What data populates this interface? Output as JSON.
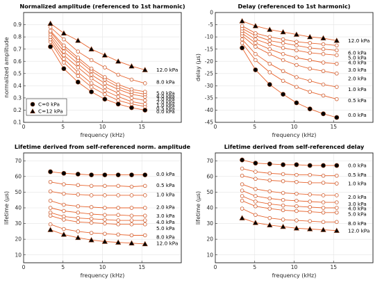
{
  "colors": {
    "line": "#e8632c",
    "marker_edge": "#c94e1c",
    "bold_fill": "#000000",
    "bold_edge": "#8a3a16"
  },
  "chart_data": [
    {
      "type": "line",
      "title": "Normalized amplitude (referenced to 1st harmonic)",
      "xlabel": "frequency (kHz)",
      "ylabel": "normalized amplitude",
      "xlim": [
        0,
        20
      ],
      "ylim": [
        0.1,
        1.0
      ],
      "xticks": [
        0,
        5,
        10,
        15
      ],
      "yticks": [
        0.1,
        0.2,
        0.3,
        0.4,
        0.5,
        0.6,
        0.7,
        0.8,
        0.9
      ],
      "grid": true,
      "x": [
        3.4,
        5.1,
        6.9,
        8.6,
        10.3,
        12.0,
        13.7,
        15.4
      ],
      "legend": {
        "placement": "bottom-left",
        "entries": [
          {
            "label": "C=0 kPa",
            "marker": "circle"
          },
          {
            "label": "C=12 kPa",
            "marker": "triangle"
          }
        ]
      },
      "series": [
        {
          "name": "0.0 kPa",
          "marker": "circle",
          "bold": true,
          "values": [
            0.72,
            0.54,
            0.43,
            0.35,
            0.29,
            0.25,
            0.22,
            0.2
          ]
        },
        {
          "name": "0.5 kPa",
          "marker": "open-circle",
          "bold": false,
          "values": [
            0.76,
            0.59,
            0.48,
            0.39,
            0.33,
            0.28,
            0.25,
            0.23
          ]
        },
        {
          "name": "1.0 kPa",
          "marker": "open-circle",
          "bold": false,
          "values": [
            0.78,
            0.62,
            0.51,
            0.42,
            0.36,
            0.31,
            0.27,
            0.25
          ]
        },
        {
          "name": "2.0 kPa",
          "marker": "open-circle",
          "bold": false,
          "values": [
            0.8,
            0.65,
            0.55,
            0.46,
            0.39,
            0.34,
            0.3,
            0.28
          ]
        },
        {
          "name": "3.0 kPa",
          "marker": "open-circle",
          "bold": false,
          "values": [
            0.82,
            0.68,
            0.58,
            0.49,
            0.42,
            0.37,
            0.33,
            0.31
          ]
        },
        {
          "name": "4.0 kPa",
          "marker": "open-circle",
          "bold": false,
          "values": [
            0.84,
            0.71,
            0.61,
            0.52,
            0.45,
            0.39,
            0.35,
            0.33
          ]
        },
        {
          "name": "5.0 kPa",
          "marker": "open-circle",
          "bold": false,
          "values": [
            0.85,
            0.73,
            0.63,
            0.54,
            0.47,
            0.41,
            0.37,
            0.35
          ]
        },
        {
          "name": "8.0 kPa",
          "marker": "open-circle",
          "bold": false,
          "values": [
            0.88,
            0.78,
            0.68,
            0.61,
            0.55,
            0.49,
            0.45,
            0.42
          ]
        },
        {
          "name": "12.0 kPa",
          "marker": "triangle",
          "bold": true,
          "values": [
            0.91,
            0.83,
            0.77,
            0.7,
            0.65,
            0.6,
            0.56,
            0.53
          ]
        }
      ],
      "labels": [
        {
          "text": "12.0 kPa",
          "y": 0.53
        },
        {
          "text": "8.0 kPa",
          "y": 0.43
        },
        {
          "text": "5.0 kPa",
          "y": 0.34
        },
        {
          "text": "4.0 kPa",
          "y": 0.315
        },
        {
          "text": "3.0 kPa",
          "y": 0.29
        },
        {
          "text": "2.0 kPa",
          "y": 0.265
        },
        {
          "text": "1.0 kPa",
          "y": 0.24
        },
        {
          "text": "0.5 kPa",
          "y": 0.215
        },
        {
          "text": "0.0 kPa",
          "y": 0.19
        }
      ]
    },
    {
      "type": "line",
      "title": "Delay (referenced to 1st harmonic)",
      "xlabel": "frequency (kHz)",
      "ylabel": "delay (μs)",
      "xlim": [
        0,
        20
      ],
      "ylim": [
        -45,
        0
      ],
      "xticks": [
        0,
        5,
        10,
        15
      ],
      "yticks": [
        0,
        -5,
        -10,
        -15,
        -20,
        -25,
        -30,
        -35,
        -40,
        -45
      ],
      "grid": true,
      "x": [
        3.4,
        5.1,
        6.9,
        8.6,
        10.3,
        12.0,
        13.7,
        15.4
      ],
      "series": [
        {
          "name": "0.0 kPa",
          "marker": "circle",
          "bold": true,
          "values": [
            -14.5,
            -23.5,
            -29.5,
            -33.5,
            -37.0,
            -39.5,
            -41.5,
            -43.0
          ]
        },
        {
          "name": "0.5 kPa",
          "marker": "open-circle",
          "bold": false,
          "values": [
            -12.5,
            -19.5,
            -24.5,
            -28.0,
            -30.5,
            -32.5,
            -34.0,
            -35.5
          ]
        },
        {
          "name": "1.0 kPa",
          "marker": "open-circle",
          "bold": false,
          "values": [
            -11.0,
            -17.0,
            -21.0,
            -24.0,
            -26.5,
            -28.0,
            -29.5,
            -30.5
          ]
        },
        {
          "name": "2.0 kPa",
          "marker": "open-circle",
          "bold": false,
          "values": [
            -9.5,
            -14.0,
            -17.0,
            -19.5,
            -21.5,
            -23.0,
            -24.0,
            -25.0
          ]
        },
        {
          "name": "3.0 kPa",
          "marker": "open-circle",
          "bold": false,
          "values": [
            -8.5,
            -12.5,
            -15.0,
            -17.0,
            -18.5,
            -19.5,
            -20.5,
            -21.0
          ]
        },
        {
          "name": "4.0 kPa",
          "marker": "open-circle",
          "bold": false,
          "values": [
            -7.5,
            -11.0,
            -13.0,
            -14.5,
            -15.5,
            -16.5,
            -17.0,
            -17.5
          ]
        },
        {
          "name": "5.0 kPa",
          "marker": "open-circle",
          "bold": false,
          "values": [
            -6.5,
            -9.5,
            -11.5,
            -12.5,
            -13.5,
            -14.5,
            -15.0,
            -15.5
          ]
        },
        {
          "name": "6.0 kPa",
          "marker": "open-circle",
          "bold": false,
          "values": [
            -5.5,
            -8.5,
            -10.0,
            -11.0,
            -12.0,
            -12.5,
            -13.0,
            -13.5
          ]
        },
        {
          "name": "12.0 kPa",
          "marker": "triangle",
          "bold": true,
          "values": [
            -3.5,
            -5.5,
            -7.0,
            -8.0,
            -9.0,
            -10.0,
            -10.5,
            -11.5
          ]
        }
      ],
      "labels": [
        {
          "text": "12.0 kPa",
          "y": -11.5
        },
        {
          "text": "6.0 kPa",
          "y": -16.5
        },
        {
          "text": "5.0 kPa",
          "y": -18.5
        },
        {
          "text": "4.0 kPa",
          "y": -20.5
        },
        {
          "text": "3.0 kPa",
          "y": -23.5
        },
        {
          "text": "2.0 kPa",
          "y": -27.0
        },
        {
          "text": "1.0 kPa",
          "y": -31.5
        },
        {
          "text": "0.5 kPa",
          "y": -36.0
        },
        {
          "text": "0.0 kPa",
          "y": -42.0
        }
      ]
    },
    {
      "type": "line",
      "title": "Lifetime derived from self-referenced norm. amplitude",
      "xlabel": "frequency (kHz)",
      "ylabel": "lifetime (μs)",
      "xlim": [
        0,
        20
      ],
      "ylim": [
        5,
        75
      ],
      "xticks": [
        0,
        5,
        10,
        15
      ],
      "yticks": [
        10,
        20,
        30,
        40,
        50,
        60,
        70
      ],
      "grid": true,
      "x": [
        3.4,
        5.1,
        6.9,
        8.6,
        10.3,
        12.0,
        13.7,
        15.4
      ],
      "series": [
        {
          "name": "0.0 kPa",
          "marker": "circle",
          "bold": true,
          "values": [
            63.0,
            62.0,
            61.5,
            61.0,
            61.0,
            61.0,
            61.0,
            61.0
          ]
        },
        {
          "name": "0.5 kPa",
          "marker": "open-circle",
          "bold": false,
          "values": [
            56.5,
            55.0,
            54.5,
            54.0,
            54.0,
            54.0,
            53.5,
            54.0
          ]
        },
        {
          "name": "1.0 kPa",
          "marker": "open-circle",
          "bold": false,
          "values": [
            50.5,
            49.0,
            48.5,
            48.0,
            48.0,
            48.0,
            48.0,
            48.0
          ]
        },
        {
          "name": "2.0 kPa",
          "marker": "open-circle",
          "bold": false,
          "values": [
            44.5,
            42.0,
            41.0,
            40.5,
            40.0,
            40.0,
            40.0,
            40.0
          ]
        },
        {
          "name": "3.0 kPa",
          "marker": "open-circle",
          "bold": false,
          "values": [
            40.0,
            38.0,
            37.0,
            36.0,
            35.5,
            35.5,
            35.0,
            35.0
          ]
        },
        {
          "name": "4.0 kPa",
          "marker": "open-circle",
          "bold": false,
          "values": [
            37.0,
            34.5,
            33.5,
            33.0,
            32.5,
            32.0,
            32.0,
            32.0
          ]
        },
        {
          "name": "5.0 kPa",
          "marker": "open-circle",
          "bold": false,
          "values": [
            35.0,
            32.5,
            31.0,
            30.5,
            30.0,
            29.5,
            29.5,
            29.5
          ]
        },
        {
          "name": "8.0 kPa",
          "marker": "open-circle",
          "bold": false,
          "values": [
            29.5,
            26.5,
            25.0,
            24.0,
            23.5,
            23.0,
            22.5,
            22.5
          ]
        },
        {
          "name": "12.0 kPa",
          "marker": "triangle",
          "bold": true,
          "values": [
            26.0,
            23.0,
            21.0,
            19.5,
            18.5,
            18.0,
            17.5,
            17.0
          ]
        }
      ],
      "labels": [
        {
          "text": "0.0 kPa",
          "y": 61.5
        },
        {
          "text": "0.5 kPa",
          "y": 54.5
        },
        {
          "text": "1.0 kPa",
          "y": 48.5
        },
        {
          "text": "2.0 kPa",
          "y": 40.5
        },
        {
          "text": "3.0 kPa",
          "y": 35.0
        },
        {
          "text": "4.0 kPa",
          "y": 31.0
        },
        {
          "text": "5.0 kPa",
          "y": 27.0
        },
        {
          "text": "8.0 kPa",
          "y": 21.5
        },
        {
          "text": "12.0 kPa",
          "y": 17.5
        }
      ]
    },
    {
      "type": "line",
      "title": "Lifetime derived from self-referenced delay",
      "xlabel": "frequency (kHz)",
      "ylabel": "lifetime (μs)",
      "xlim": [
        0,
        20
      ],
      "ylim": [
        5,
        75
      ],
      "xticks": [
        0,
        5,
        10,
        15
      ],
      "yticks": [
        10,
        20,
        30,
        40,
        50,
        60,
        70
      ],
      "grid": true,
      "x": [
        3.4,
        5.1,
        6.9,
        8.6,
        10.3,
        12.0,
        13.7,
        15.4
      ],
      "series": [
        {
          "name": "0.0 kPa",
          "marker": "circle",
          "bold": true,
          "values": [
            70.5,
            68.5,
            68.0,
            67.5,
            67.5,
            67.0,
            67.0,
            67.0
          ]
        },
        {
          "name": "0.5 kPa",
          "marker": "open-circle",
          "bold": false,
          "values": [
            65.0,
            63.0,
            62.0,
            61.5,
            61.0,
            61.0,
            60.5,
            60.5
          ]
        },
        {
          "name": "1.0 kPa",
          "marker": "open-circle",
          "bold": false,
          "values": [
            60.5,
            58.5,
            57.5,
            57.0,
            56.5,
            56.0,
            56.0,
            55.5
          ]
        },
        {
          "name": "2.0 kPa",
          "marker": "open-circle",
          "bold": false,
          "values": [
            55.0,
            52.0,
            50.5,
            49.5,
            49.0,
            48.5,
            48.0,
            48.0
          ]
        },
        {
          "name": "3.0 kPa",
          "marker": "open-circle",
          "bold": false,
          "values": [
            51.0,
            47.5,
            46.0,
            45.0,
            44.5,
            44.0,
            43.5,
            43.5
          ]
        },
        {
          "name": "4.0 kPa",
          "marker": "open-circle",
          "bold": false,
          "values": [
            47.5,
            44.0,
            42.5,
            41.5,
            41.0,
            40.5,
            40.0,
            40.0
          ]
        },
        {
          "name": "5.0 kPa",
          "marker": "open-circle",
          "bold": false,
          "values": [
            44.5,
            41.0,
            39.5,
            38.5,
            38.0,
            37.5,
            37.0,
            37.0
          ]
        },
        {
          "name": "8.0 kPa",
          "marker": "open-circle",
          "bold": false,
          "values": [
            39.5,
            35.5,
            33.5,
            32.5,
            32.0,
            31.5,
            31.0,
            31.0
          ]
        },
        {
          "name": "12.0 kPa",
          "marker": "triangle",
          "bold": true,
          "values": [
            33.5,
            30.5,
            29.0,
            28.0,
            27.0,
            26.5,
            26.0,
            25.5
          ]
        }
      ],
      "labels": [
        {
          "text": "0.0 kPa",
          "y": 67.0
        },
        {
          "text": "0.5 kPa",
          "y": 61.0
        },
        {
          "text": "1.0 kPa",
          "y": 55.5
        },
        {
          "text": "2.0 kPa",
          "y": 47.0
        },
        {
          "text": "3.0 kPa",
          "y": 42.5
        },
        {
          "text": "4.0 kPa",
          "y": 39.5
        },
        {
          "text": "5.0 kPa",
          "y": 36.0
        },
        {
          "text": "8.0 kPa",
          "y": 30.0
        },
        {
          "text": "12.0 kPa",
          "y": 25.5
        }
      ]
    }
  ]
}
